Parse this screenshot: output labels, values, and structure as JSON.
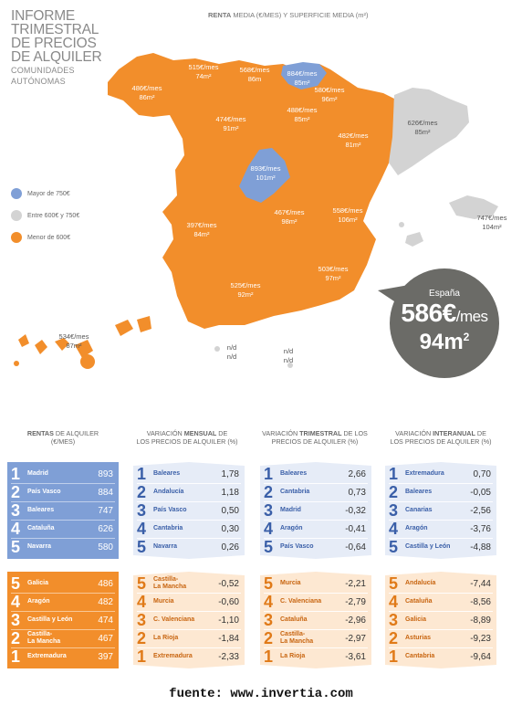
{
  "title": {
    "lines": [
      "Informe",
      "trimestral",
      "de precios",
      "de alquiler"
    ],
    "subtitle_lines": [
      "Comunidades",
      "autónomas"
    ]
  },
  "map_header": {
    "bold": "RENTA",
    "rest": "MEDIA (€/MES) Y SUPERFICIE MEDIA (m²)"
  },
  "colors": {
    "blue": "#7f9fd6",
    "grey": "#d3d3d3",
    "orange": "#f28e2b",
    "dark": "#6b6b67",
    "blue_light": "#e6ecf7",
    "orange_light": "#fde8d2"
  },
  "legend": [
    {
      "label": "Mayor de 750€",
      "color": "#7f9fd6"
    },
    {
      "label": "Entre 600€ y 750€",
      "color": "#d3d3d3"
    },
    {
      "label": "Menor de 600€",
      "color": "#f28e2b"
    }
  ],
  "regions": [
    {
      "price": "515€/mes",
      "area": "74m²",
      "tone": "w"
    },
    {
      "price": "568€/mes",
      "area": "86m",
      "tone": "w"
    },
    {
      "price": "884€/mes",
      "area": "85m²",
      "tone": "w"
    },
    {
      "price": "486€/mes",
      "area": "86m²",
      "tone": "w"
    },
    {
      "price": "580€/mes",
      "area": "96m²",
      "tone": "w"
    },
    {
      "price": "474€/mes",
      "area": "91m²",
      "tone": "w"
    },
    {
      "price": "488€/mes",
      "area": "85m²",
      "tone": "w"
    },
    {
      "price": "626€/mes",
      "area": "85m²",
      "tone": "g"
    },
    {
      "price": "482€/mes",
      "area": "81m²",
      "tone": "w"
    },
    {
      "price": "893€/mes",
      "area": "101m²",
      "tone": "w"
    },
    {
      "price": "747€/mes",
      "area": "104m²",
      "tone": "g"
    },
    {
      "price": "558€/mes",
      "area": "106m²",
      "tone": "w"
    },
    {
      "price": "467€/mes",
      "area": "98m²",
      "tone": "w"
    },
    {
      "price": "397€/mes",
      "area": "84m²",
      "tone": "w"
    },
    {
      "price": "503€/mes",
      "area": "97m²",
      "tone": "w"
    },
    {
      "price": "525€/mes",
      "area": "92m²",
      "tone": "w"
    },
    {
      "price": "534€/mes",
      "area": "87m²",
      "tone": "g"
    },
    {
      "price": "n/d",
      "area": "n/d",
      "tone": "g"
    },
    {
      "price": "n/d",
      "area": "n/d",
      "tone": "g"
    }
  ],
  "national": {
    "country": "España",
    "rent": "586€",
    "rent_unit": "/mes",
    "area": "94m",
    "area_sup": "2"
  },
  "columns": [
    {
      "head_bold": "RENTAS",
      "head_rest": " DE ALQUILER",
      "head_line2": "(€/mes)",
      "top": [
        {
          "rank": "1",
          "name": "Madrid",
          "value": "893"
        },
        {
          "rank": "2",
          "name": "País Vasco",
          "value": "884"
        },
        {
          "rank": "3",
          "name": "Baleares",
          "value": "747"
        },
        {
          "rank": "4",
          "name": "Cataluña",
          "value": "626"
        },
        {
          "rank": "5",
          "name": "Navarra",
          "value": "580"
        }
      ],
      "bottom": [
        {
          "rank": "5",
          "name": "Galicia",
          "value": "486"
        },
        {
          "rank": "4",
          "name": "Aragón",
          "value": "482"
        },
        {
          "rank": "3",
          "name": "Castilla y León",
          "value": "474"
        },
        {
          "rank": "2",
          "name": "Castilla-\nLa Mancha",
          "value": "467"
        },
        {
          "rank": "1",
          "name": "Extremadura",
          "value": "397"
        }
      ]
    },
    {
      "head_pre": "VARIACIÓN ",
      "head_bold": "MENSUAL",
      "head_rest": " DE",
      "head_line2": "LOS PRECIOS DE ALQUILER (%)",
      "top": [
        {
          "rank": "1",
          "name": "Baleares",
          "value": "1,78"
        },
        {
          "rank": "2",
          "name": "Andalucía",
          "value": "1,18"
        },
        {
          "rank": "3",
          "name": "País Vasco",
          "value": "0,50"
        },
        {
          "rank": "4",
          "name": "Cantabria",
          "value": "0,30"
        },
        {
          "rank": "5",
          "name": "Navarra",
          "value": "0,26"
        }
      ],
      "bottom": [
        {
          "rank": "5",
          "name": "Castilla-\nLa Mancha",
          "value": "-0,52"
        },
        {
          "rank": "4",
          "name": "Murcia",
          "value": "-0,60"
        },
        {
          "rank": "3",
          "name": "C. Valenciana",
          "value": "-1,10"
        },
        {
          "rank": "2",
          "name": "La Rioja",
          "value": "-1,84"
        },
        {
          "rank": "1",
          "name": "Extremadura",
          "value": "-2,33"
        }
      ]
    },
    {
      "head_pre": "VARIACIÓN ",
      "head_bold": "TRIMESTRAL",
      "head_rest": " DE LOS",
      "head_line2": "PRECIOS DE ALQUILER (%)",
      "top": [
        {
          "rank": "1",
          "name": "Baleares",
          "value": "2,66"
        },
        {
          "rank": "2",
          "name": "Cantabria",
          "value": "0,73"
        },
        {
          "rank": "3",
          "name": "Madrid",
          "value": "-0,32"
        },
        {
          "rank": "4",
          "name": "Aragón",
          "value": "-0,41"
        },
        {
          "rank": "5",
          "name": "País Vasco",
          "value": "-0,64"
        }
      ],
      "bottom": [
        {
          "rank": "5",
          "name": "Murcia",
          "value": "-2,21"
        },
        {
          "rank": "4",
          "name": "C. Valenciana",
          "value": "-2,79"
        },
        {
          "rank": "3",
          "name": "Cataluña",
          "value": "-2,96"
        },
        {
          "rank": "2",
          "name": "Castilla-\nLa Mancha",
          "value": "-2,97"
        },
        {
          "rank": "1",
          "name": "La Rioja",
          "value": "-3,61"
        }
      ]
    },
    {
      "head_pre": "VARIACIÓN ",
      "head_bold": "INTERANUAL",
      "head_rest": " DE",
      "head_line2": "LOS PRECIOS DE ALQUILER (%)",
      "top": [
        {
          "rank": "1",
          "name": "Extremadura",
          "value": "0,70"
        },
        {
          "rank": "2",
          "name": "Baleares",
          "value": "-0,05"
        },
        {
          "rank": "3",
          "name": "Canarias",
          "value": "-2,56"
        },
        {
          "rank": "4",
          "name": "Aragón",
          "value": "-3,76"
        },
        {
          "rank": "5",
          "name": "Castilla y León",
          "value": "-4,88"
        }
      ],
      "bottom": [
        {
          "rank": "5",
          "name": "Andalucía",
          "value": "-7,44"
        },
        {
          "rank": "4",
          "name": "Cataluña",
          "value": "-8,56"
        },
        {
          "rank": "3",
          "name": "Galicia",
          "value": "-8,89"
        },
        {
          "rank": "2",
          "name": "Asturias",
          "value": "-9,23"
        },
        {
          "rank": "1",
          "name": "Cantabria",
          "value": "-9,64"
        }
      ]
    }
  ],
  "footer": "fuente: www.invertia.com"
}
